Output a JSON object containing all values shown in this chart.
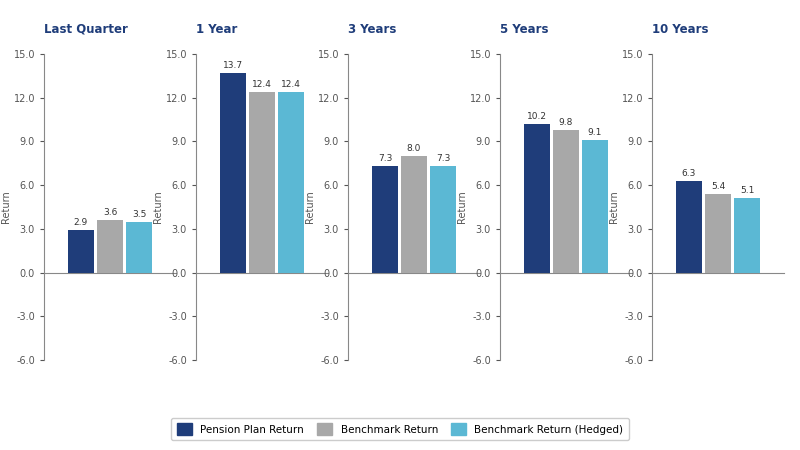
{
  "periods": [
    "Last Quarter",
    "1 Year",
    "3 Years",
    "5 Years",
    "10 Years"
  ],
  "pension_values": [
    2.9,
    13.7,
    7.3,
    10.2,
    6.3
  ],
  "benchmark_values": [
    3.6,
    12.4,
    8.0,
    9.8,
    5.4
  ],
  "benchmark_hedged_values": [
    3.5,
    12.4,
    7.3,
    9.1,
    5.1
  ],
  "pension_color": "#1F3D7A",
  "benchmark_color": "#A8A8A8",
  "benchmark_hedged_color": "#5BB8D4",
  "ylim": [
    -6.0,
    15.0
  ],
  "yticks": [
    -6.0,
    -3.0,
    0.0,
    3.0,
    6.0,
    9.0,
    12.0,
    15.0
  ],
  "ylabel": "Return",
  "legend_labels": [
    "Pension Plan Return",
    "Benchmark Return",
    "Benchmark Return (Hedged)"
  ],
  "bar_width": 0.22,
  "title_fontsize": 8.5,
  "label_fontsize": 7,
  "value_fontsize": 6.5,
  "background_color": "#ffffff",
  "spine_color": "#888888",
  "title_color": "#1F3D7A",
  "tick_color": "#555555"
}
